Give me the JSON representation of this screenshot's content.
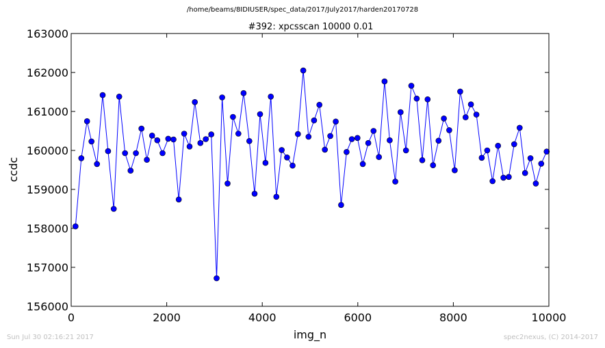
{
  "header": {
    "path": "/home/beams/8IDIUSER/spec_data/2017/July2017/harden20170728"
  },
  "footer": {
    "timestamp": "Sun Jul 30 02:16:21 2017",
    "credit": "spec2nexus, (C) 2014-2017"
  },
  "chart_data": {
    "type": "line",
    "title": "#392: xpcsscan 10000 0.01",
    "xlabel": "img_n",
    "ylabel": "ccdc",
    "xlim": [
      0,
      10000
    ],
    "ylim": [
      156000,
      163000
    ],
    "xticks": [
      0,
      2000,
      4000,
      6000,
      8000,
      10000
    ],
    "yticks": [
      156000,
      157000,
      158000,
      159000,
      160000,
      161000,
      162000,
      163000
    ],
    "xtick_labels": [
      "0",
      "2000",
      "4000",
      "6000",
      "8000",
      "10000"
    ],
    "ytick_labels": [
      "156000",
      "157000",
      "158000",
      "159000",
      "160000",
      "161000",
      "162000",
      "163000"
    ],
    "series": [
      {
        "color": "#0000ff",
        "marker": "circle",
        "x": [
          90,
          212,
          332,
          426,
          540,
          659,
          772,
          891,
          1006,
          1127,
          1244,
          1355,
          1471,
          1585,
          1694,
          1802,
          1913,
          2031,
          2142,
          2252,
          2366,
          2479,
          2589,
          2705,
          2818,
          2932,
          3044,
          3160,
          3273,
          3387,
          3500,
          3609,
          3729,
          3840,
          3954,
          4068,
          4179,
          4295,
          4407,
          4519,
          4634,
          4746,
          4858,
          4969,
          5085,
          5196,
          5311,
          5424,
          5539,
          5651,
          5765,
          5875,
          5993,
          6105,
          6219,
          6329,
          6443,
          6560,
          6667,
          6785,
          6896,
          7009,
          7121,
          7234,
          7349,
          7462,
          7575,
          7691,
          7802,
          7914,
          8029,
          8143,
          8256,
          8368,
          8483,
          8594,
          8709,
          8821,
          8936,
          9048,
          9161,
          9274,
          9388,
          9501,
          9615,
          9726,
          9840,
          9954
        ],
        "y": [
          158050,
          159800,
          160750,
          160230,
          159650,
          161420,
          159980,
          158500,
          161380,
          159930,
          159480,
          159930,
          160560,
          159760,
          160380,
          160260,
          159930,
          160300,
          160280,
          158740,
          160430,
          160100,
          161240,
          160190,
          160290,
          160410,
          156720,
          161360,
          159150,
          160860,
          160430,
          161470,
          160240,
          158890,
          160930,
          159680,
          161380,
          158810,
          160010,
          159820,
          159610,
          160420,
          162050,
          160350,
          160770,
          161170,
          160020,
          160370,
          160740,
          158600,
          159960,
          160290,
          160320,
          159650,
          160190,
          160500,
          159830,
          161770,
          160260,
          159200,
          160980,
          160000,
          161660,
          161330,
          159750,
          161310,
          159620,
          160250,
          160820,
          160520,
          159490,
          161510,
          160850,
          161180,
          160920,
          159810,
          160000,
          159210,
          160120,
          159300,
          159320,
          160160,
          160580,
          159420,
          159800,
          159150,
          159660,
          159970
        ]
      }
    ]
  }
}
